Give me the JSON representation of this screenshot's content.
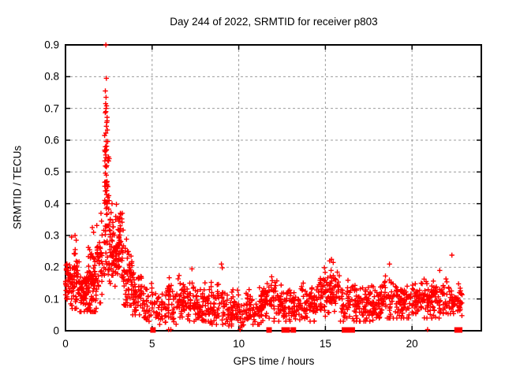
{
  "chart_data": {
    "type": "scatter",
    "title": "Day 244 of 2022, SRMTID for receiver p803",
    "xlabel": "GPS time / hours",
    "ylabel": "SRMTID / TECUs",
    "xlim": [
      0,
      24
    ],
    "ylim": [
      0,
      0.9
    ],
    "xticks": [
      0,
      5,
      10,
      15,
      20
    ],
    "xtick_labels": [
      "0",
      "5",
      "10",
      "15",
      "20"
    ],
    "yticks": [
      0,
      0.1,
      0.2,
      0.3,
      0.4,
      0.5,
      0.6,
      0.7,
      0.8,
      0.9
    ],
    "ytick_labels": [
      "0",
      "0.1",
      "0.2",
      "0.3",
      "0.4",
      "0.5",
      "0.6",
      "0.7",
      "0.8",
      "0.9"
    ],
    "grid": true,
    "grid_color": "#9c9c9c",
    "marker": "+",
    "marker_color": "#ff0000",
    "border_color": "#000000",
    "background_color": "#ffffff",
    "series_name": "SRMTID",
    "seed": 20220244,
    "density_bins": [
      {
        "x0": 0.0,
        "x1": 0.3,
        "n": 36,
        "ylo": 0.08,
        "yhi": 0.27,
        "mode": 0.15
      },
      {
        "x0": 0.3,
        "x1": 0.8,
        "n": 60,
        "ylo": 0.07,
        "yhi": 0.3,
        "mode": 0.15
      },
      {
        "x0": 0.8,
        "x1": 1.3,
        "n": 60,
        "ylo": 0.06,
        "yhi": 0.22,
        "mode": 0.12
      },
      {
        "x0": 1.3,
        "x1": 1.8,
        "n": 75,
        "ylo": 0.06,
        "yhi": 0.32,
        "mode": 0.15
      },
      {
        "x0": 1.8,
        "x1": 2.15,
        "n": 40,
        "ylo": 0.08,
        "yhi": 0.38,
        "mode": 0.2
      },
      {
        "x0": 2.25,
        "x1": 2.55,
        "n": 48,
        "ylo": 0.33,
        "yhi": 0.72,
        "mode": 0.48
      },
      {
        "x0": 2.2,
        "x1": 2.6,
        "n": 30,
        "ylo": 0.12,
        "yhi": 0.33,
        "mode": 0.24
      },
      {
        "x0": 2.55,
        "x1": 2.95,
        "n": 55,
        "ylo": 0.14,
        "yhi": 0.4,
        "mode": 0.26
      },
      {
        "x0": 2.95,
        "x1": 3.35,
        "n": 55,
        "ylo": 0.12,
        "yhi": 0.37,
        "mode": 0.26
      },
      {
        "x0": 3.35,
        "x1": 3.85,
        "n": 60,
        "ylo": 0.08,
        "yhi": 0.3,
        "mode": 0.16
      },
      {
        "x0": 3.85,
        "x1": 4.5,
        "n": 55,
        "ylo": 0.05,
        "yhi": 0.23,
        "mode": 0.12
      },
      {
        "x0": 4.5,
        "x1": 5.3,
        "n": 45,
        "ylo": 0.02,
        "yhi": 0.18,
        "mode": 0.08
      },
      {
        "x0": 5.3,
        "x1": 6.4,
        "n": 65,
        "ylo": 0.02,
        "yhi": 0.17,
        "mode": 0.08
      },
      {
        "x0": 6.4,
        "x1": 7.4,
        "n": 70,
        "ylo": 0.03,
        "yhi": 0.19,
        "mode": 0.09
      },
      {
        "x0": 7.4,
        "x1": 8.3,
        "n": 70,
        "ylo": 0.03,
        "yhi": 0.16,
        "mode": 0.08
      },
      {
        "x0": 8.3,
        "x1": 9.3,
        "n": 65,
        "ylo": 0.02,
        "yhi": 0.2,
        "mode": 0.09
      },
      {
        "x0": 9.3,
        "x1": 10.3,
        "n": 70,
        "ylo": 0.015,
        "yhi": 0.13,
        "mode": 0.06
      },
      {
        "x0": 10.3,
        "x1": 11.4,
        "n": 80,
        "ylo": 0.02,
        "yhi": 0.15,
        "mode": 0.07
      },
      {
        "x0": 11.4,
        "x1": 12.5,
        "n": 75,
        "ylo": 0.03,
        "yhi": 0.17,
        "mode": 0.09
      },
      {
        "x0": 12.5,
        "x1": 13.5,
        "n": 65,
        "ylo": 0.03,
        "yhi": 0.15,
        "mode": 0.08
      },
      {
        "x0": 13.5,
        "x1": 14.5,
        "n": 70,
        "ylo": 0.03,
        "yhi": 0.15,
        "mode": 0.08
      },
      {
        "x0": 14.5,
        "x1": 15.2,
        "n": 50,
        "ylo": 0.04,
        "yhi": 0.2,
        "mode": 0.11
      },
      {
        "x0": 15.2,
        "x1": 15.8,
        "n": 50,
        "ylo": 0.05,
        "yhi": 0.22,
        "mode": 0.13
      },
      {
        "x0": 15.8,
        "x1": 16.8,
        "n": 60,
        "ylo": 0.03,
        "yhi": 0.18,
        "mode": 0.09
      },
      {
        "x0": 16.8,
        "x1": 18.0,
        "n": 85,
        "ylo": 0.03,
        "yhi": 0.16,
        "mode": 0.08
      },
      {
        "x0": 18.0,
        "x1": 19.0,
        "n": 70,
        "ylo": 0.04,
        "yhi": 0.18,
        "mode": 0.09
      },
      {
        "x0": 19.0,
        "x1": 20.0,
        "n": 70,
        "ylo": 0.04,
        "yhi": 0.17,
        "mode": 0.09
      },
      {
        "x0": 20.0,
        "x1": 21.0,
        "n": 70,
        "ylo": 0.04,
        "yhi": 0.18,
        "mode": 0.1
      },
      {
        "x0": 21.0,
        "x1": 22.0,
        "n": 70,
        "ylo": 0.04,
        "yhi": 0.17,
        "mode": 0.1
      },
      {
        "x0": 22.0,
        "x1": 22.9,
        "n": 55,
        "ylo": 0.04,
        "yhi": 0.17,
        "mode": 0.09
      }
    ],
    "peak_points": [
      [
        2.33,
        0.9
      ],
      [
        2.36,
        0.795
      ],
      [
        2.3,
        0.755
      ],
      [
        2.34,
        0.735
      ],
      [
        2.32,
        0.715
      ],
      [
        2.37,
        0.708
      ],
      [
        2.34,
        0.7
      ],
      [
        2.33,
        0.69
      ],
      [
        2.4,
        0.672
      ],
      [
        2.38,
        0.656
      ],
      [
        2.36,
        0.644
      ],
      [
        2.42,
        0.632
      ],
      [
        2.35,
        0.596
      ],
      [
        2.37,
        0.57
      ],
      [
        2.33,
        0.545
      ],
      [
        2.38,
        0.52
      ],
      [
        2.36,
        0.49
      ],
      [
        2.4,
        0.47
      ],
      [
        2.42,
        0.455
      ],
      [
        2.3,
        0.44
      ],
      [
        2.44,
        0.42
      ],
      [
        2.39,
        0.4
      ],
      [
        2.35,
        0.385
      ]
    ],
    "extra_points": [
      [
        0.35,
        0.295
      ],
      [
        0.55,
        0.3
      ],
      [
        0.62,
        0.285
      ],
      [
        1.55,
        0.325
      ],
      [
        1.62,
        0.31
      ],
      [
        2.05,
        0.37
      ],
      [
        2.9,
        0.36
      ],
      [
        3.0,
        0.355
      ],
      [
        3.08,
        0.345
      ],
      [
        7.3,
        0.195
      ],
      [
        9.0,
        0.21
      ],
      [
        9.05,
        0.198
      ],
      [
        11.9,
        0.17
      ],
      [
        15.35,
        0.225
      ],
      [
        15.45,
        0.215
      ],
      [
        18.7,
        0.21
      ],
      [
        21.6,
        0.19
      ],
      [
        22.3,
        0.238
      ]
    ],
    "zero_squares_x": [
      5.05,
      11.75,
      12.62,
      12.8,
      13.15,
      16.1,
      16.25,
      16.4,
      16.55,
      22.6,
      22.75
    ],
    "zero_ticks_x": [
      5.95,
      6.08,
      10.08,
      20.9
    ]
  }
}
